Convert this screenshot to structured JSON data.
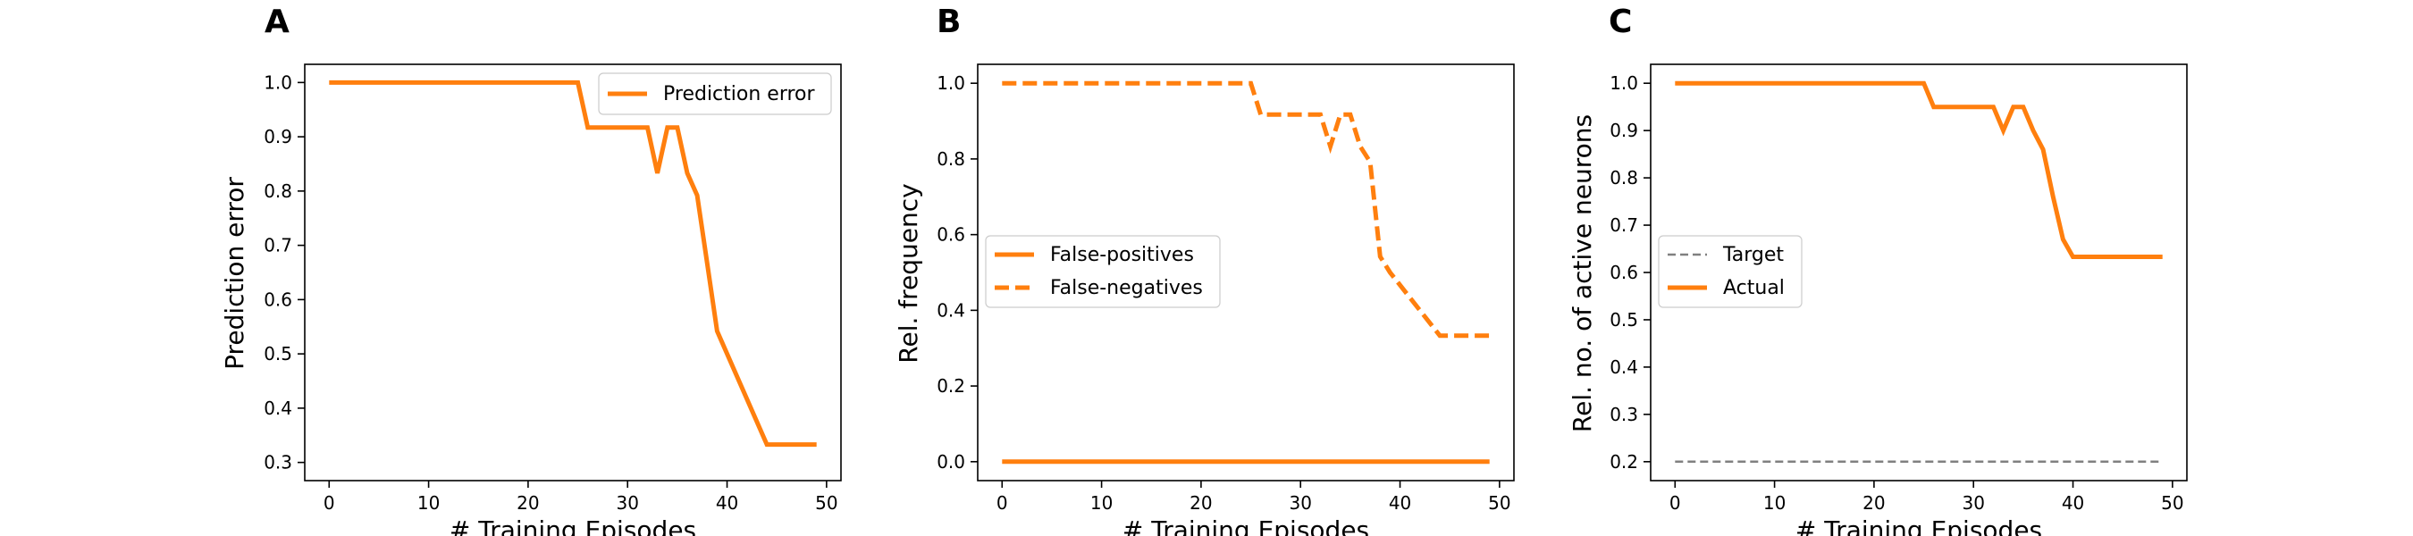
{
  "colors": {
    "orange": "#ff7f0e",
    "gray": "#808080"
  },
  "chart_data": [
    {
      "panel": "A",
      "type": "line",
      "xlabel": "# Training Episodes",
      "ylabel": "Prediction error",
      "xlim": [
        -2.45,
        51.45
      ],
      "ylim": [
        0.2665,
        1.0335
      ],
      "xticks": [
        0,
        10,
        20,
        30,
        40,
        50
      ],
      "yticks": [
        0.3,
        0.4,
        0.5,
        0.6,
        0.7,
        0.8,
        0.9,
        1.0
      ],
      "ytick_labels": [
        "0.3",
        "0.4",
        "0.5",
        "0.6",
        "0.7",
        "0.8",
        "0.9",
        "1.0"
      ],
      "legend_position": "top-right",
      "series": [
        {
          "name": "Prediction error",
          "color": "#ff7f0e",
          "style": "solid",
          "x": [
            0,
            25,
            26,
            32,
            33,
            34,
            35,
            36,
            37,
            38,
            39,
            44,
            45,
            49
          ],
          "y": [
            1.0,
            1.0,
            0.917,
            0.917,
            0.833,
            0.917,
            0.917,
            0.833,
            0.792,
            0.667,
            0.542,
            0.333,
            0.333,
            0.333
          ]
        }
      ]
    },
    {
      "panel": "B",
      "type": "line",
      "xlabel": "# Training Episodes",
      "ylabel": "Rel. frequency",
      "xlim": [
        -2.45,
        51.45
      ],
      "ylim": [
        -0.05,
        1.05
      ],
      "xticks": [
        0,
        10,
        20,
        30,
        40,
        50
      ],
      "yticks": [
        0.0,
        0.2,
        0.4,
        0.6,
        0.8,
        1.0
      ],
      "ytick_labels": [
        "0.0",
        "0.2",
        "0.4",
        "0.6",
        "0.8",
        "1.0"
      ],
      "legend_position": "center-left",
      "series": [
        {
          "name": "False-positives",
          "color": "#ff7f0e",
          "style": "solid",
          "x": [
            0,
            49
          ],
          "y": [
            0.0,
            0.0
          ]
        },
        {
          "name": "False-negatives",
          "color": "#ff7f0e",
          "style": "dashed",
          "x": [
            0,
            25,
            26,
            32,
            33,
            34,
            35,
            36,
            37,
            38,
            39,
            44,
            45,
            49
          ],
          "y": [
            1.0,
            1.0,
            0.917,
            0.917,
            0.833,
            0.917,
            0.917,
            0.833,
            0.792,
            0.542,
            0.5,
            0.333,
            0.333,
            0.333
          ]
        }
      ]
    },
    {
      "panel": "C",
      "type": "line",
      "xlabel": "# Training Episodes",
      "ylabel": "Rel. no. of active neurons",
      "xlim": [
        -2.45,
        51.45
      ],
      "ylim": [
        0.16,
        1.04
      ],
      "xticks": [
        0,
        10,
        20,
        30,
        40,
        50
      ],
      "yticks": [
        0.2,
        0.3,
        0.4,
        0.5,
        0.6,
        0.7,
        0.8,
        0.9,
        1.0
      ],
      "ytick_labels": [
        "0.2",
        "0.3",
        "0.4",
        "0.5",
        "0.6",
        "0.7",
        "0.8",
        "0.9",
        "1.0"
      ],
      "legend_position": "center-left",
      "series": [
        {
          "name": "Target",
          "color": "#808080",
          "style": "dashed-thin",
          "x": [
            0,
            49
          ],
          "y": [
            0.2,
            0.2
          ]
        },
        {
          "name": "Actual",
          "color": "#ff7f0e",
          "style": "solid",
          "x": [
            0,
            25,
            26,
            32,
            33,
            34,
            35,
            36,
            37,
            38,
            39,
            40,
            45,
            49
          ],
          "y": [
            1.0,
            1.0,
            0.95,
            0.95,
            0.9,
            0.95,
            0.95,
            0.9,
            0.86,
            0.76,
            0.67,
            0.633,
            0.633,
            0.633
          ]
        }
      ]
    }
  ]
}
